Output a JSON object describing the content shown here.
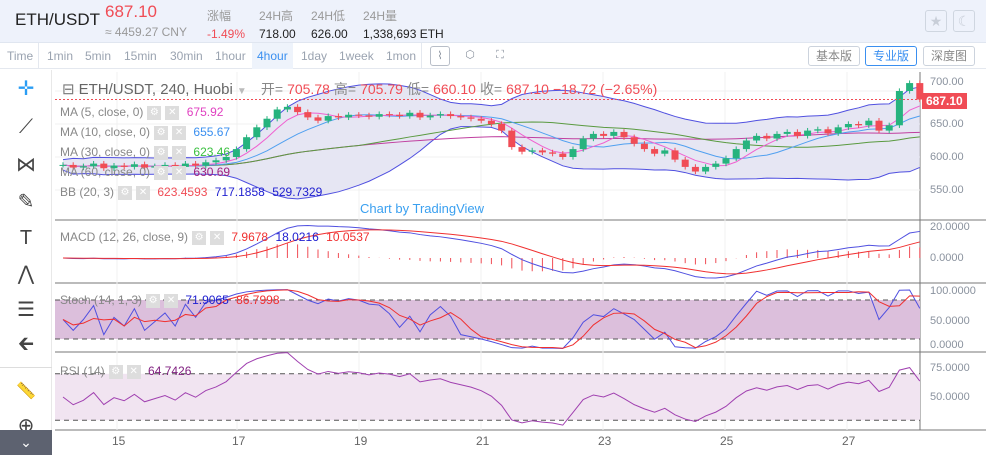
{
  "header": {
    "symbol": "ETH/USDT",
    "price": "687.10",
    "cny": "≈ 4459.27 CNY",
    "stats": [
      {
        "label": "涨幅",
        "value": "-1.49%",
        "color": "#f04c55"
      },
      {
        "label": "24H高",
        "value": "718.00"
      },
      {
        "label": "24H低",
        "value": "626.00"
      },
      {
        "label": "24H量",
        "value": "1,338,693 ETH"
      }
    ],
    "buttons": [
      {
        "icon": "star-icon",
        "glyph": "★"
      },
      {
        "icon": "moon-icon",
        "glyph": "☾"
      }
    ]
  },
  "toolbar": {
    "timeframes": [
      "Time",
      "1min",
      "5min",
      "15min",
      "30min",
      "1hour",
      "4hour",
      "1day",
      "1week",
      "1mon"
    ],
    "active": "4hour",
    "icons": [
      {
        "name": "chart-type-icon",
        "glyph": "⌇"
      },
      {
        "name": "settings-icon",
        "glyph": "⬡"
      },
      {
        "name": "fullscreen-icon",
        "glyph": "⛶"
      }
    ],
    "views": [
      "基本版",
      "专业版",
      "深度图"
    ],
    "active_view": "专业版"
  },
  "side_tools": [
    {
      "name": "crosshair-icon",
      "glyph": "✛"
    },
    {
      "name": "trend-line-icon",
      "glyph": "⟋"
    },
    {
      "name": "fib-icon",
      "glyph": "⋈"
    },
    {
      "name": "brush-icon",
      "glyph": "✎"
    },
    {
      "name": "text-icon",
      "glyph": "T"
    },
    {
      "name": "pattern-icon",
      "glyph": "⋀"
    },
    {
      "name": "measure-lines-icon",
      "glyph": "☰"
    },
    {
      "name": "back-arrow-icon",
      "glyph": "🡰"
    },
    {
      "name": "ruler-icon",
      "glyph": "📏"
    },
    {
      "name": "zoom-in-icon",
      "glyph": "⊕"
    }
  ],
  "side_collapse": "⌄",
  "chart": {
    "title": "ETH/USDT, 240, Huobi",
    "ohlc": [
      {
        "label": "开=",
        "value": "705.78"
      },
      {
        "label": "高=",
        "value": "705.79"
      },
      {
        "label": "低=",
        "value": "660.10"
      },
      {
        "label": "收=",
        "value": "687.10"
      },
      {
        "label": "",
        "value": "−18.72 (−2.65%)"
      }
    ],
    "indicators": [
      {
        "label": "MA (5, close, 0)",
        "values": [
          "675.92"
        ],
        "color": "#e040c0"
      },
      {
        "label": "MA (10, close, 0)",
        "values": [
          "655.67"
        ],
        "color": "#3a8ff0"
      },
      {
        "label": "MA (30, close, 0)",
        "values": [
          "623.46"
        ],
        "color": "#3ac040"
      },
      {
        "label": "MA (60, close, 0)",
        "values": [
          "630.69"
        ],
        "color": "#a02080"
      },
      {
        "label": "BB (20, 3)",
        "values": [
          "623.4593",
          "717.1858",
          "529.7329"
        ],
        "color": "#2020d0"
      }
    ],
    "watermark": "Chart by TradingView",
    "macd": {
      "label": "MACD (12, 26, close, 9)",
      "values": [
        "7.9678",
        "18.0216",
        "10.0537"
      ]
    },
    "stoch": {
      "label": "Stoch (14, 1, 3)",
      "values": [
        "71.9065",
        "86.7998"
      ]
    },
    "rsi": {
      "label": "RSI (14)",
      "values": [
        "64.7426"
      ]
    },
    "price_axis": [
      "700.00",
      "650.00",
      "600.00",
      "550.00"
    ],
    "last_price_tag": "687.10",
    "macd_axis": [
      "20.0000",
      "0.0000"
    ],
    "stoch_axis": [
      "100.0000",
      "50.0000",
      "0.0000"
    ],
    "rsi_axis": [
      "75.0000",
      "50.0000"
    ],
    "dates": [
      "15",
      "17",
      "19",
      "21",
      "23",
      "25",
      "27"
    ],
    "colors": {
      "up": "#26b37e",
      "down": "#f04c55"
    },
    "closes": [
      588,
      584,
      586,
      590,
      583,
      587,
      585,
      589,
      584,
      586,
      588,
      585,
      590,
      587,
      592,
      595,
      600,
      612,
      630,
      645,
      658,
      672,
      676,
      668,
      660,
      655,
      662,
      660,
      664,
      663,
      661,
      665,
      664,
      662,
      667,
      660,
      663,
      665,
      662,
      660,
      658,
      655,
      650,
      640,
      615,
      608,
      610,
      607,
      605,
      600,
      612,
      628,
      635,
      632,
      638,
      630,
      620,
      612,
      605,
      610,
      596,
      585,
      578,
      585,
      590,
      598,
      612,
      625,
      632,
      628,
      635,
      638,
      632,
      640,
      642,
      636,
      645,
      650,
      648,
      655,
      640,
      648,
      700,
      712,
      687.1
    ]
  }
}
